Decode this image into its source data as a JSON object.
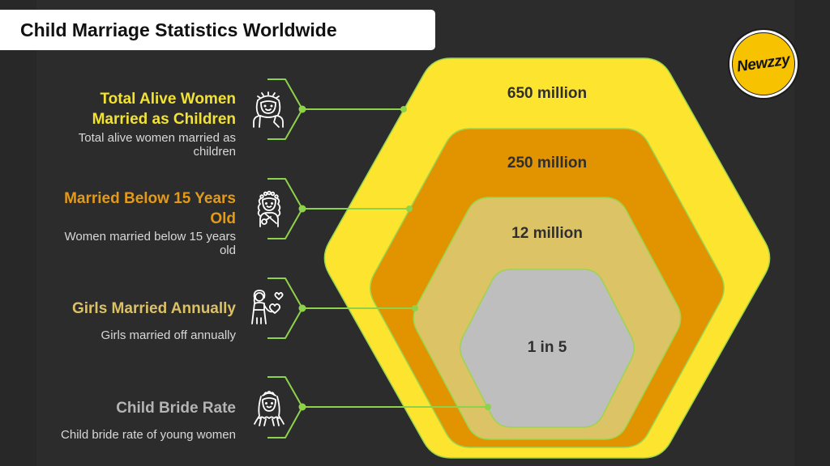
{
  "title": "Child Marriage Statistics Worldwide",
  "logo": {
    "text": "Newzzy",
    "color": "#f7c200"
  },
  "colors": {
    "background": "#282828",
    "connector": "#8ed24a",
    "value_text": "#2f2f2f",
    "description_text": "#d8d8d8"
  },
  "items": [
    {
      "heading": "Total Alive Women Married as Children",
      "description": "Total alive women married as children",
      "value": "650 million",
      "heading_color": "#f2e234",
      "layer_color": "#fde52f",
      "icon": "bride-with-wreath-icon"
    },
    {
      "heading": "Married Below 15 Years Old",
      "description": "Women married below 15 years old",
      "value": "250 million",
      "heading_color": "#e49a17",
      "layer_color": "#e29300",
      "icon": "girl-with-flower-crown-icon"
    },
    {
      "heading": "Girls Married Annually",
      "description": "Girls married off annually",
      "value": "12 million",
      "heading_color": "#dbc166",
      "layer_color": "#dcc366",
      "icon": "girl-with-hearts-icon"
    },
    {
      "heading": "Child Bride Rate",
      "description": "Child bride rate of young women",
      "value": "1 in 5",
      "heading_color": "#b4b4b4",
      "layer_color": "#bebebf",
      "icon": "bride-with-veil-icon"
    }
  ]
}
